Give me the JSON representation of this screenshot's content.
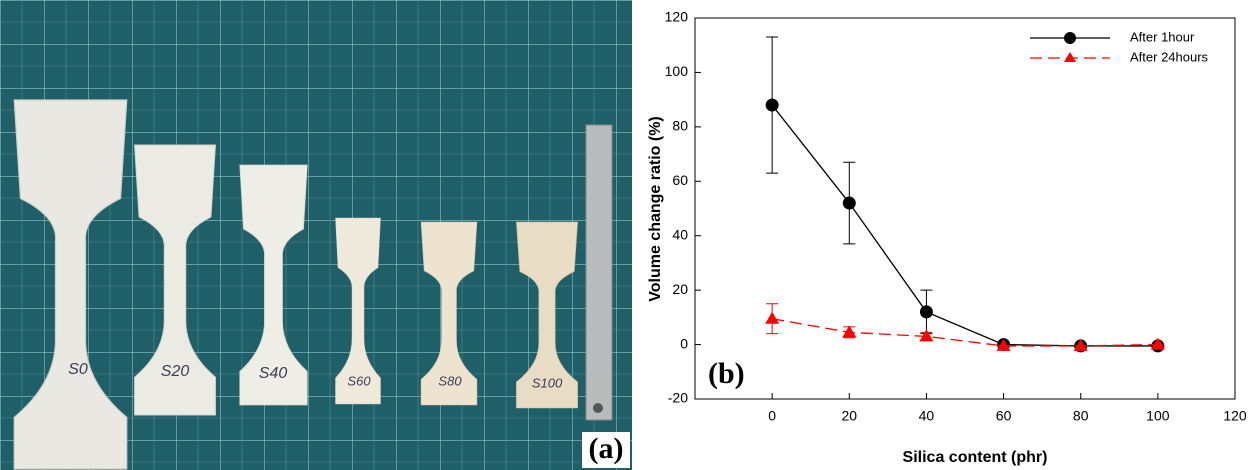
{
  "photo": {
    "panel_label": "(a)",
    "specimen_labels": [
      "S0",
      "S20",
      "S40",
      "S60",
      "S80",
      "S100"
    ]
  },
  "chart_data": {
    "type": "line",
    "panel_label": "(b)",
    "x_label": "Silica content (phr)",
    "y_label": "Volume change ratio (%)",
    "x": [
      0,
      20,
      40,
      60,
      80,
      100
    ],
    "series": [
      {
        "name": "After 1hour",
        "color": "#000000",
        "marker": "circle",
        "linestyle": "solid",
        "values": [
          88,
          52,
          12,
          0,
          -0.5,
          -0.5
        ],
        "errors": [
          25,
          15,
          8,
          0,
          0,
          0
        ]
      },
      {
        "name": "After 24hours",
        "color": "#ff0000",
        "marker": "triangle",
        "linestyle": "dashed",
        "values": [
          9.5,
          4.5,
          3,
          -0.5,
          -0.5,
          0
        ],
        "errors": [
          5.5,
          2,
          1.5,
          0,
          0,
          0
        ]
      }
    ],
    "xlim": [
      -20,
      120
    ],
    "xticks": [
      0,
      20,
      40,
      60,
      80,
      100,
      120
    ],
    "ylim": [
      -20,
      120
    ],
    "yticks": [
      -20,
      0,
      20,
      40,
      60,
      80,
      100,
      120
    ],
    "legend": "upper right",
    "grid": false
  }
}
